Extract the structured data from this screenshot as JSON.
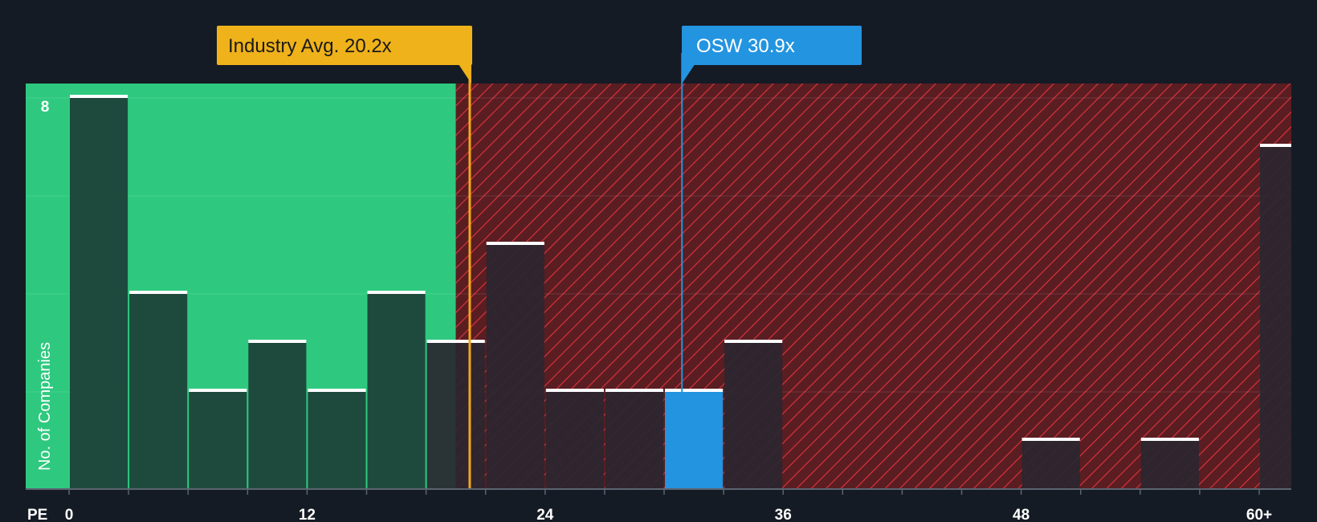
{
  "chart_data": {
    "type": "bar",
    "x_axis_title": "PE",
    "ylabel": "No. of Companies",
    "ylim": [
      0,
      8
    ],
    "y_tick_labels": [
      {
        "value": 8,
        "label": "8"
      }
    ],
    "x_ticks": [
      {
        "value": 0,
        "label": "0"
      },
      {
        "value": 12,
        "label": "12"
      },
      {
        "value": 24,
        "label": "24"
      },
      {
        "value": 36,
        "label": "36"
      },
      {
        "value": 48,
        "label": "48"
      },
      {
        "value": 60,
        "label": "60+"
      }
    ],
    "bins": [
      {
        "x0": 0,
        "x1": 3,
        "count": 8
      },
      {
        "x0": 3,
        "x1": 6,
        "count": 4
      },
      {
        "x0": 6,
        "x1": 9,
        "count": 2
      },
      {
        "x0": 9,
        "x1": 12,
        "count": 3
      },
      {
        "x0": 12,
        "x1": 15,
        "count": 2
      },
      {
        "x0": 15,
        "x1": 18,
        "count": 4
      },
      {
        "x0": 18,
        "x1": 21,
        "count": 3
      },
      {
        "x0": 21,
        "x1": 24,
        "count": 5
      },
      {
        "x0": 24,
        "x1": 27,
        "count": 2
      },
      {
        "x0": 27,
        "x1": 30,
        "count": 2
      },
      {
        "x0": 30,
        "x1": 33,
        "count": 2,
        "highlight": true
      },
      {
        "x0": 33,
        "x1": 36,
        "count": 3
      },
      {
        "x0": 48,
        "x1": 51,
        "count": 1
      },
      {
        "x0": 54,
        "x1": 57,
        "count": 1
      },
      {
        "x0": 60,
        "x1": 63,
        "count": 7
      }
    ],
    "fair_range": [
      0,
      19.5
    ],
    "industry_avg": {
      "value": 20.2,
      "label": "Industry Avg. 20.2x"
    },
    "company": {
      "value": 30.9,
      "label": "OSW 30.9x"
    },
    "colors": {
      "background": "#151b24",
      "good_zone": "#2ec97f",
      "bad_zone": "#5a1d22",
      "hatch": "#e0343c",
      "bar_in_good": "#1e4a3d",
      "bar_in_bad": "#2a2630",
      "bar_highlight": "#2394e0",
      "bar_cap": "#ffffff",
      "industry_line": "#f0a81c",
      "industry_callout": "#efb21a",
      "company_line": "#2394e0",
      "company_callout": "#2394e0",
      "gridline": "#ffffff"
    }
  }
}
